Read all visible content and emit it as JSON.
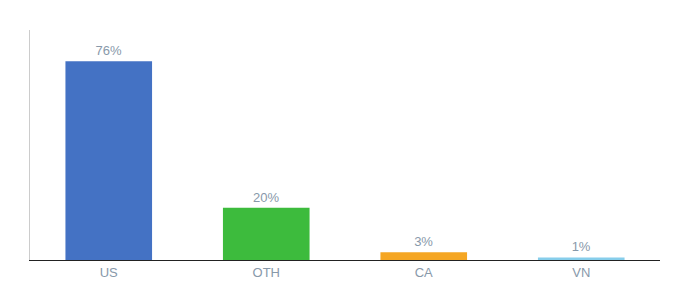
{
  "chart_data": {
    "type": "bar",
    "categories": [
      "US",
      "OTH",
      "CA",
      "VN"
    ],
    "values": [
      76,
      20,
      3,
      1
    ],
    "value_labels": [
      "76%",
      "20%",
      "3%",
      "1%"
    ],
    "colors": [
      "#4472c4",
      "#3dbb3d",
      "#f5a623",
      "#87ceeb"
    ],
    "ylim": [
      0,
      88
    ],
    "data_labels": true,
    "tick_labels": "x",
    "grid": false
  }
}
